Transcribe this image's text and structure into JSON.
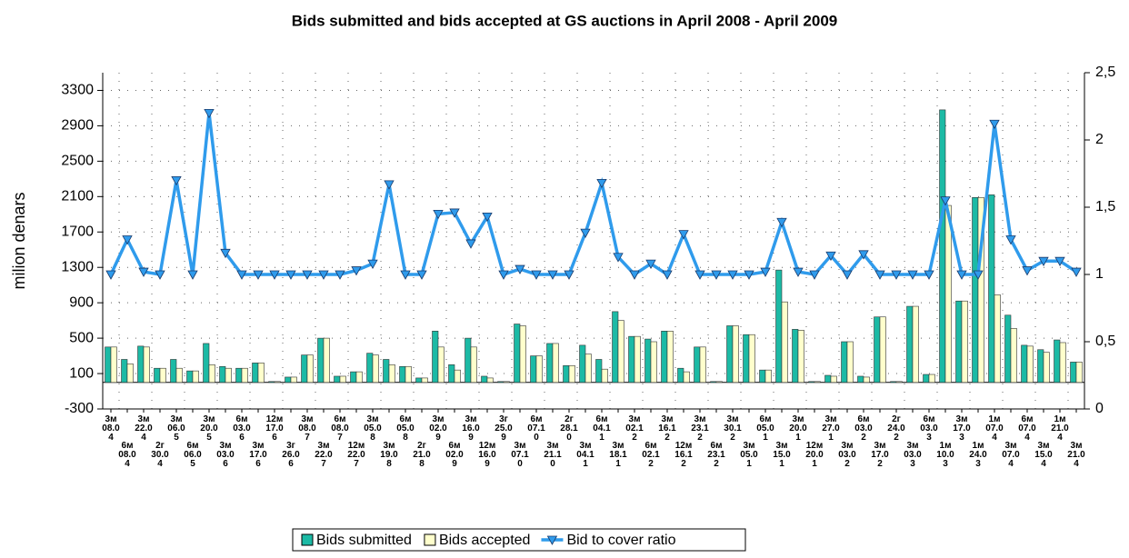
{
  "chart_data": {
    "type": "bar-line",
    "title": "Bids submitted and bids accepted at GS auctions in April 2008 - April 2009",
    "y_label": "milion denars",
    "categories": [
      "3м\n08.0\n4",
      "6м\n08.0\n4",
      "3м\n22.0\n4",
      "2г\n30.0\n4",
      "3м\n06.0\n5",
      "6м\n06.0\n5",
      "3м\n20.0\n5",
      "3м\n03.0\n6",
      "6м\n03.0\n6",
      "3м\n17.0\n6",
      "12м\n17.0\n6",
      "3г\n26.0\n6",
      "3м\n08.0\n7",
      "3м\n22.0\n7",
      "6м\n08.0\n7",
      "12м\n22.0\n7",
      "3м\n05.0\n8",
      "3м\n19.0\n8",
      "6м\n05.0\n8",
      "2г\n21.0\n8",
      "3м\n02.0\n9",
      "6м\n02.0\n9",
      "3м\n16.0\n9",
      "12м\n16.0\n9",
      "3г\n25.0\n9",
      "3м\n07.1\n0",
      "6м\n07.1\n0",
      "3м\n21.1\n0",
      "2г\n28.1\n0",
      "3м\n04.1\n1",
      "6м\n04.1\n1",
      "3м\n18.1\n1",
      "3м\n02.1\n2",
      "6м\n02.1\n2",
      "3м\n16.1\n2",
      "12м\n16.1\n2",
      "3м\n23.1\n2",
      "6м\n23.1\n2",
      "3м\n30.1\n2",
      "3м\n05.0\n1",
      "6м\n05.0\n1",
      "3м\n15.0\n1",
      "3м\n20.0\n1",
      "12м\n20.0\n1",
      "3м\n27.0\n1",
      "3м\n03.0\n2",
      "6м\n03.0\n2",
      "3м\n17.0\n2",
      "2г\n24.0\n2",
      "3м\n03.0\n3",
      "6м\n03.0\n3",
      "1м\n10.0\n3",
      "3м\n17.0\n3",
      "1м\n24.0\n3",
      "1м\n07.0\n4",
      "3м\n07.0\n4",
      "6м\n07.0\n4",
      "3м\n15.0\n4",
      "1м\n21.0\n4",
      "3м\n21.0\n4"
    ],
    "series": [
      {
        "name": "Bids submitted",
        "color": "#1cbaa5",
        "values": [
          400,
          260,
          410,
          160,
          260,
          130,
          440,
          180,
          160,
          220,
          10,
          60,
          310,
          500,
          70,
          120,
          330,
          260,
          180,
          50,
          580,
          200,
          500,
          70,
          10,
          660,
          300,
          440,
          190,
          420,
          260,
          800,
          520,
          490,
          580,
          160,
          400,
          10,
          640,
          540,
          140,
          1270,
          600,
          10,
          80,
          460,
          70,
          740,
          10,
          860,
          90,
          3080,
          920,
          2090,
          2120,
          760,
          420,
          370,
          480,
          230
        ]
      },
      {
        "name": "Bids accepted",
        "color": "#ffffcc",
        "values": [
          400,
          210,
          400,
          160,
          160,
          130,
          200,
          160,
          160,
          220,
          10,
          60,
          310,
          500,
          70,
          120,
          310,
          200,
          180,
          50,
          400,
          140,
          400,
          50,
          10,
          640,
          300,
          440,
          190,
          320,
          150,
          700,
          520,
          460,
          580,
          120,
          400,
          10,
          640,
          540,
          140,
          910,
          590,
          10,
          70,
          460,
          60,
          740,
          10,
          860,
          90,
          2000,
          920,
          2090,
          990,
          610,
          410,
          340,
          450,
          230
        ]
      },
      {
        "name": "Bid to cover ratio",
        "color": "#2f9bec",
        "axis": "y2",
        "values": [
          1.0,
          1.26,
          1.02,
          1.0,
          1.7,
          1.0,
          2.2,
          1.16,
          1.0,
          1.0,
          1.0,
          1.0,
          1.0,
          1.0,
          1.0,
          1.03,
          1.08,
          1.67,
          1.0,
          1.0,
          1.45,
          1.46,
          1.23,
          1.43,
          1.0,
          1.04,
          1.0,
          1.0,
          1.0,
          1.31,
          1.68,
          1.13,
          1.0,
          1.08,
          1.0,
          1.3,
          1.0,
          1.0,
          1.0,
          1.0,
          1.02,
          1.39,
          1.02,
          1.0,
          1.14,
          1.0,
          1.15,
          1.0,
          1.0,
          1.0,
          1.0,
          1.55,
          1.0,
          1.0,
          2.12,
          1.26,
          1.03,
          1.1,
          1.1,
          1.02
        ]
      }
    ],
    "ylim": [
      -300,
      3500
    ],
    "yticks": [
      -300,
      100,
      500,
      900,
      1300,
      1700,
      2100,
      2500,
      2900,
      3300
    ],
    "y2lim": [
      0,
      2.5
    ],
    "y2ticks": [
      0,
      {
        "value": 0.5,
        "label": "0,5"
      },
      1,
      {
        "value": 1.5,
        "label": "1,5"
      },
      2,
      {
        "value": 2.5,
        "label": "2,5"
      }
    ],
    "grid": true,
    "legend": "bottom"
  }
}
